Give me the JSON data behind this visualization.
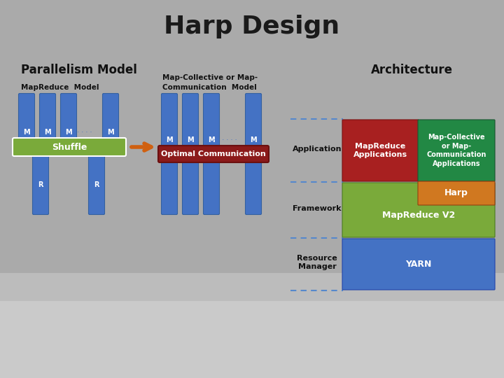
{
  "title": "Harp Design",
  "bg_color": "#aaaaaa",
  "title_color": "#1a1a1a",
  "parallelism_title": "Parallelism Model",
  "architecture_title": "Architecture",
  "mr_model_label": "MapReduce  Model",
  "mc_model_label": "Map-Collective or Map-\nCommunication  Model",
  "shuffle_label": "Shuffle",
  "optimal_label": "Optimal Communication",
  "col_blue": "#4472c4",
  "col_green_shuffle": "#7aaa3a",
  "col_red_optimal": "#8b1a1a",
  "col_arrow": "#d06010",
  "arch_row1_left_color": "#a82020",
  "arch_row1_right_color": "#228844",
  "arch_row2_left_color": "#7aaa3a",
  "arch_row2_right_color": "#d07820",
  "arch_row3_color": "#4472c4",
  "arch_row1_left_text": "MapReduce\nApplications",
  "arch_row1_right_text": "Map-Collective\nor Map-\nCommunication\nApplications",
  "arch_row2_left_text": "MapReduce V2",
  "arch_row2_right_text": "Harp",
  "arch_row3_text": "YARN",
  "dashed_line_color": "#5588cc",
  "arch_labels": [
    "Application",
    "Framework",
    "Resource\nManager"
  ]
}
